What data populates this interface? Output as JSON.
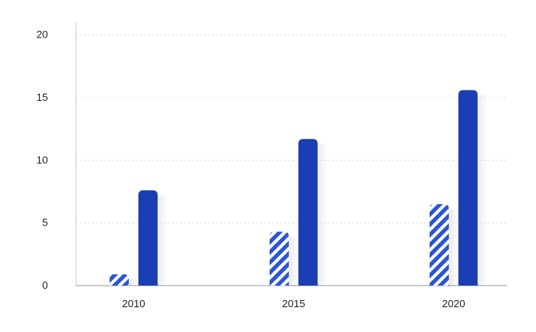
{
  "chart_data": {
    "type": "bar",
    "title": "",
    "xlabel": "",
    "ylabel": "",
    "categories": [
      "2010",
      "2015",
      "2020"
    ],
    "series": [
      {
        "values": [
          0.9,
          4.3,
          6.5
        ],
        "color": "#1f4fc9",
        "pattern": "diagonal-stripes"
      },
      {
        "values": [
          7.6,
          11.7,
          15.6
        ],
        "color": "#1a3fb2",
        "pattern": "solid"
      }
    ],
    "ylim": [
      0,
      21
    ],
    "yticks": [
      0,
      5,
      10,
      15,
      20
    ],
    "grid": true,
    "legend": "none"
  }
}
